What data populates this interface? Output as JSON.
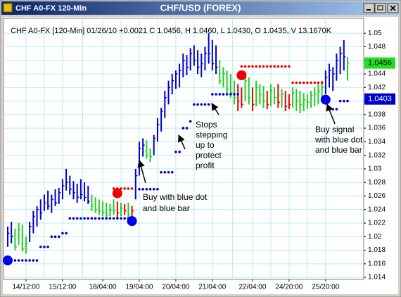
{
  "window": {
    "caption": "CHF A0-FX 120-Min"
  },
  "chart_data": {
    "type": "hlc",
    "title": "CHF/USD (FOREX)",
    "info": "CHF A0-FX [120-Min] 01/26/10 +0.0021 C 1.0456, H 1.0460, L 1.0430, O 1.0435, V 13.1670K",
    "ylim": [
      1.0137,
      1.0522
    ],
    "yticks": [
      1.014,
      1.016,
      1.018,
      1.02,
      1.022,
      1.024,
      1.026,
      1.028,
      1.03,
      1.032,
      1.034,
      1.036,
      1.038,
      1.04,
      1.042,
      1.044,
      1.046,
      1.048,
      1.05
    ],
    "grid": true,
    "categories": [
      null,
      null,
      null,
      null,
      null,
      "14/12:00",
      null,
      null,
      null,
      null,
      null,
      null,
      null,
      null,
      null,
      "15/12:00",
      null,
      null,
      null,
      null,
      null,
      null,
      null,
      null,
      null,
      null,
      "18/04:00",
      null,
      null,
      null,
      null,
      null,
      null,
      null,
      null,
      null,
      "19/04:00",
      null,
      null,
      null,
      null,
      null,
      null,
      null,
      null,
      null,
      "20/04:00",
      null,
      null,
      null,
      null,
      null,
      null,
      null,
      null,
      null,
      "21/04:00",
      null,
      null,
      null,
      null,
      null,
      null,
      null,
      null,
      null,
      null,
      "22/04:00",
      null,
      null,
      null,
      null,
      null,
      null,
      null,
      null,
      null,
      "24/20:00",
      null,
      null,
      null,
      null,
      null,
      null,
      null,
      null,
      null,
      "25/20:00",
      null,
      null,
      null,
      null,
      null,
      null
    ],
    "high": [
      1.0215,
      1.0222,
      1.0212,
      1.022,
      1.0218,
      1.02,
      1.0222,
      1.0238,
      1.0245,
      1.0255,
      1.0262,
      1.0268,
      1.0262,
      1.027,
      1.0272,
      1.0285,
      1.03,
      1.029,
      1.0282,
      1.0278,
      1.0285,
      1.028,
      1.0275,
      1.0262,
      1.0258,
      1.0255,
      1.0252,
      1.025,
      1.0248,
      1.0255,
      1.0252,
      1.025,
      1.0248,
      1.025,
      1.0245,
      1.03,
      1.034,
      1.0345,
      1.0342,
      1.033,
      1.035,
      1.0375,
      1.039,
      1.0415,
      1.043,
      1.044,
      1.0445,
      1.0455,
      1.047,
      1.0468,
      1.0478,
      1.0482,
      1.0475,
      1.047,
      1.048,
      1.05,
      1.049,
      1.0482,
      1.046,
      1.045,
      1.0445,
      1.044,
      1.043,
      1.0425,
      1.042,
      1.044,
      1.0435,
      1.042,
      1.043,
      1.0425,
      1.0422,
      1.0415,
      1.0425,
      1.042,
      1.0425,
      1.0418,
      1.0415,
      1.041,
      1.042,
      1.0418,
      1.0415,
      1.0412,
      1.041,
      1.0415,
      1.042,
      1.0425,
      1.043,
      1.0445,
      1.0455,
      1.045,
      1.047,
      1.048,
      1.049,
      1.0465
    ],
    "low": [
      1.0185,
      1.019,
      1.018,
      1.0188,
      1.0178,
      1.0175,
      1.0192,
      1.0205,
      1.0215,
      1.0225,
      1.0238,
      1.024,
      1.0235,
      1.0245,
      1.0248,
      1.0255,
      1.0268,
      1.0262,
      1.0255,
      1.025,
      1.0255,
      1.0252,
      1.0248,
      1.0238,
      1.0235,
      1.0232,
      1.023,
      1.0228,
      1.023,
      1.0232,
      1.0228,
      1.023,
      1.0232,
      1.0228,
      1.0225,
      1.0255,
      1.029,
      1.0318,
      1.0315,
      1.031,
      1.032,
      1.034,
      1.0355,
      1.0375,
      1.0395,
      1.041,
      1.0418,
      1.042,
      1.0435,
      1.0438,
      1.0445,
      1.0452,
      1.044,
      1.0435,
      1.0445,
      1.0455,
      1.0445,
      1.044,
      1.0425,
      1.042,
      1.041,
      1.0405,
      1.0395,
      1.0385,
      1.039,
      1.04,
      1.0395,
      1.0385,
      1.0392,
      1.0395,
      1.039,
      1.0388,
      1.0392,
      1.0395,
      1.039,
      1.039,
      1.0385,
      1.0388,
      1.039,
      1.0385,
      1.0382,
      1.0385,
      1.0388,
      1.039,
      1.0392,
      1.0395,
      1.04,
      1.041,
      1.042,
      1.0415,
      1.043,
      1.044,
      1.0445,
      1.043
    ],
    "close": [
      1.0205,
      1.02,
      1.0185,
      1.021,
      1.0182,
      1.019,
      1.0215,
      1.023,
      1.024,
      1.0235,
      1.025,
      1.0245,
      1.0255,
      1.025,
      1.0265,
      1.0275,
      1.028,
      1.027,
      1.0265,
      1.0258,
      1.0262,
      1.0258,
      1.0252,
      1.0245,
      1.024,
      1.0238,
      1.0236,
      1.0232,
      1.024,
      1.0238,
      1.0235,
      1.0242,
      1.0238,
      1.0232,
      1.0238,
      1.029,
      1.033,
      1.0335,
      1.032,
      1.0318,
      1.0345,
      1.0365,
      1.0385,
      1.0405,
      1.042,
      1.043,
      1.044,
      1.0445,
      1.046,
      1.045,
      1.047,
      1.046,
      1.045,
      1.0455,
      1.047,
      1.047,
      1.0455,
      1.045,
      1.043,
      1.044,
      1.0418,
      1.0412,
      1.0405,
      1.04,
      1.0395,
      1.043,
      1.0405,
      1.0395,
      1.042,
      1.041,
      1.04,
      1.0395,
      1.0415,
      1.0405,
      1.0398,
      1.041,
      1.0392,
      1.0395,
      1.0412,
      1.04,
      1.0395,
      1.0402,
      1.0398,
      1.0408,
      1.041,
      1.0415,
      1.042,
      1.0435,
      1.0445,
      1.044,
      1.046,
      1.047,
      1.0465,
      1.0456
    ],
    "bar_colors": [
      "#0000cc",
      "#0000cc",
      "#22cc22",
      "#22cc22",
      "#22cc22",
      "#22cc22",
      "#0000cc",
      "#0000cc",
      "#0000cc",
      "#0000cc",
      "#0000cc",
      "#0000cc",
      "#0000cc",
      "#0000cc",
      "#0000cc",
      "#0000cc",
      "#0000cc",
      "#0000cc",
      "#0000cc",
      "#0000cc",
      "#0000cc",
      "#0000cc",
      "#0000cc",
      "#22cc22",
      "#22cc22",
      "#22cc22",
      "#22cc22",
      "#22cc22",
      "#22cc22",
      "#22cc22",
      "#dd0000",
      "#22cc22",
      "#dd0000",
      "#22cc22",
      "#dd0000",
      "#0000cc",
      "#0000cc",
      "#0000cc",
      "#22cc22",
      "#22cc22",
      "#0000cc",
      "#0000cc",
      "#0000cc",
      "#0000cc",
      "#0000cc",
      "#0000cc",
      "#0000cc",
      "#0000cc",
      "#0000cc",
      "#0000cc",
      "#0000cc",
      "#0000cc",
      "#0000cc",
      "#0000cc",
      "#0000cc",
      "#0000cc",
      "#0000cc",
      "#0000cc",
      "#22cc22",
      "#22cc22",
      "#22cc22",
      "#22cc22",
      "#22cc22",
      "#dd0000",
      "#dd0000",
      "#22cc22",
      "#22cc22",
      "#dd0000",
      "#22cc22",
      "#22cc22",
      "#22cc22",
      "#dd0000",
      "#22cc22",
      "#22cc22",
      "#dd0000",
      "#22cc22",
      "#dd0000",
      "#dd0000",
      "#22cc22",
      "#22cc22",
      "#22cc22",
      "#22cc22",
      "#22cc22",
      "#22cc22",
      "#22cc22",
      "#22cc22",
      "#22cc22",
      "#0000cc",
      "#0000cc",
      "#0000cc",
      "#0000cc",
      "#0000cc",
      "#0000cc",
      "#22cc22"
    ],
    "stops": [
      {
        "color": "#0000cc",
        "values": [
          1.0165,
          1.0165,
          1.0165,
          1.0165,
          1.0165,
          1.0165,
          1.0165,
          1.0165,
          1.0165,
          1.0185,
          1.0185,
          1.0185,
          1.02,
          1.02,
          1.02,
          1.0205,
          1.0205,
          1.0227,
          1.0227,
          1.0227,
          1.0227,
          1.0227,
          1.0227,
          1.0227,
          1.0227,
          1.0227,
          1.0227,
          1.0227,
          1.0227,
          1.0227,
          1.0227,
          1.0227,
          1.0227,
          1.0227,
          1.0227,
          null,
          1.027,
          1.027,
          1.027,
          1.027,
          1.027,
          1.027,
          1.0295,
          1.0295,
          1.0295,
          1.0295,
          1.0325,
          1.0325,
          1.036,
          1.036,
          1.037,
          1.0395,
          1.0395,
          1.0395,
          1.0395,
          1.0395,
          1.041,
          1.041,
          1.041,
          1.041,
          1.041,
          1.041,
          1.041,
          1.041,
          null,
          null,
          null,
          null,
          null,
          null,
          null,
          null,
          null,
          null,
          null,
          null,
          null,
          null,
          null,
          null,
          null,
          null,
          null,
          null,
          null,
          null,
          null,
          null,
          1.0388,
          1.0388,
          1.0388,
          1.04,
          1.04,
          1.04
        ]
      },
      {
        "color": "#ee0000",
        "values": [
          null,
          null,
          null,
          null,
          null,
          null,
          null,
          null,
          null,
          null,
          null,
          null,
          null,
          null,
          null,
          null,
          null,
          null,
          null,
          null,
          null,
          null,
          null,
          null,
          null,
          null,
          null,
          null,
          null,
          1.0271,
          1.0271,
          1.0271,
          1.0271,
          1.0271,
          1.0271,
          null,
          null,
          null,
          null,
          null,
          null,
          null,
          null,
          null,
          null,
          null,
          null,
          null,
          null,
          null,
          null,
          null,
          null,
          null,
          null,
          null,
          null,
          null,
          null,
          null,
          null,
          null,
          null,
          null,
          1.0451,
          1.0451,
          1.0451,
          1.0451,
          1.0451,
          1.0451,
          1.0451,
          1.0451,
          1.0451,
          1.0451,
          1.0451,
          1.0451,
          1.0451,
          1.0451,
          1.0427,
          1.0427,
          1.0427,
          1.0427,
          1.0427,
          1.0427,
          1.0427,
          1.0427,
          1.0427,
          null,
          null,
          null,
          null,
          null,
          null,
          null
        ]
      }
    ],
    "signals": [
      {
        "color": "#0000ee",
        "values": [
          1.0165,
          null,
          null,
          null,
          null,
          null,
          null,
          null,
          null,
          null,
          null,
          null,
          null,
          null,
          null,
          null,
          null,
          null,
          null,
          null,
          null,
          null,
          null,
          null,
          null,
          null,
          null,
          null,
          null,
          null,
          null,
          null,
          null,
          null,
          1.0223,
          null,
          null,
          null,
          null,
          null,
          null,
          null,
          null,
          null,
          null,
          null,
          null,
          null,
          null,
          null,
          null,
          null,
          null,
          null,
          null,
          null,
          null,
          null,
          null,
          null,
          null,
          null,
          null,
          null,
          null,
          null,
          null,
          null,
          null,
          null,
          null,
          null,
          null,
          null,
          null,
          null,
          null,
          null,
          null,
          null,
          null,
          null,
          null,
          null,
          null,
          null,
          null,
          1.0402,
          null,
          null,
          null,
          null,
          null,
          null
        ]
      },
      {
        "color": "#ee0000",
        "values": [
          null,
          null,
          null,
          null,
          null,
          null,
          null,
          null,
          null,
          null,
          null,
          null,
          null,
          null,
          null,
          null,
          null,
          null,
          null,
          null,
          null,
          null,
          null,
          null,
          null,
          null,
          null,
          null,
          null,
          null,
          1.0264,
          null,
          null,
          null,
          null,
          null,
          null,
          null,
          null,
          null,
          null,
          null,
          null,
          null,
          null,
          null,
          null,
          null,
          null,
          null,
          null,
          null,
          null,
          null,
          null,
          null,
          null,
          null,
          null,
          null,
          null,
          null,
          null,
          null,
          1.0438,
          null,
          null,
          null,
          null,
          null,
          null,
          null,
          null,
          null,
          null,
          null,
          null,
          null,
          null,
          null,
          null,
          null,
          null,
          null,
          null,
          null,
          null,
          null,
          null,
          null,
          null,
          null,
          null,
          null
        ]
      }
    ],
    "price_tags": [
      {
        "value": 1.0456,
        "color": "#22dd22",
        "text_color": "#000000"
      },
      {
        "value": 1.0403,
        "color": "#0000cc",
        "text_color": "#ffffff"
      }
    ],
    "annotations": [
      {
        "lines": [
          "Stops",
          "stepping",
          "up to",
          "protect",
          "profit"
        ]
      },
      {
        "lines": [
          "Buy with blue dot",
          "and blue bar"
        ]
      },
      {
        "lines": [
          "Buy signal",
          "with blue dot",
          "and blue bar"
        ]
      }
    ]
  }
}
